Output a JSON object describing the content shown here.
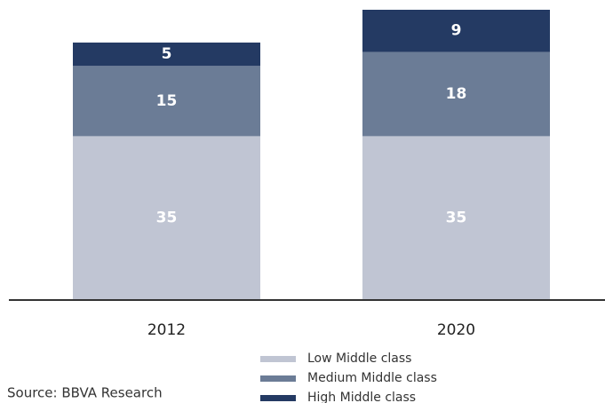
{
  "chart_data": {
    "type": "stacked_bar",
    "categories": [
      "2012",
      "2020"
    ],
    "series": [
      {
        "name": "Low Middle class",
        "color": "#c0c5d3",
        "values": [
          35,
          35
        ]
      },
      {
        "name": "Medium Middle class",
        "color": "#6b7c96",
        "values": [
          15,
          18
        ]
      },
      {
        "name": "High Middle class",
        "color": "#243a63",
        "values": [
          5,
          9
        ]
      }
    ],
    "ylim": [
      0,
      62
    ],
    "yticks": [],
    "legend": "bottom",
    "source": "Source: BBVA Research"
  }
}
